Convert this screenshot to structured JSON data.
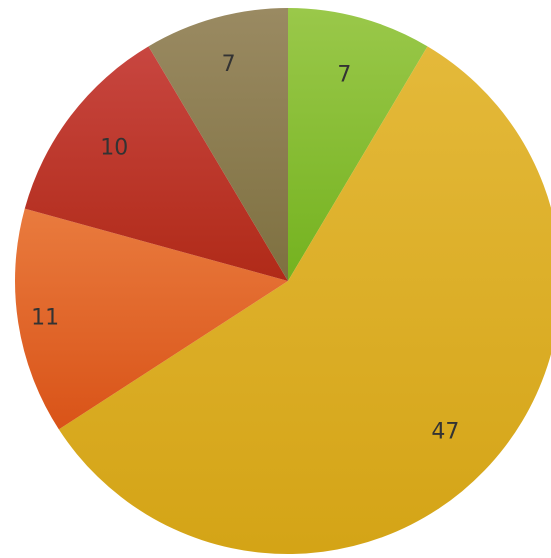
{
  "chart_data": {
    "type": "pie",
    "title": "",
    "slices": [
      {
        "label": "7",
        "value": 7,
        "color_top": "#9ac84a",
        "color_bottom": "#74b21f"
      },
      {
        "label": "47",
        "value": 47,
        "color_top": "#e4b93a",
        "color_bottom": "#d4a416"
      },
      {
        "label": "11",
        "value": 11,
        "color_top": "#e97b3e",
        "color_bottom": "#d95318"
      },
      {
        "label": "10",
        "value": 10,
        "color_top": "#c84640",
        "color_bottom": "#b02a18"
      },
      {
        "label": "7",
        "value": 7,
        "color_top": "#9a8a62",
        "color_bottom": "#7e7040"
      }
    ],
    "start_angle_deg": 0,
    "direction": "clockwise",
    "legend": "none"
  }
}
